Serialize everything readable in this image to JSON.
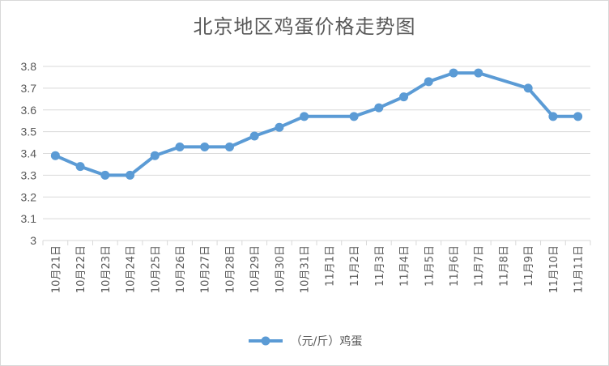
{
  "chart_data": {
    "type": "line",
    "title": "北京地区鸡蛋价格走势图",
    "categories": [
      "10月21日",
      "10月22日",
      "10月23日",
      "10月24日",
      "10月25日",
      "10月26日",
      "10月27日",
      "10月28日",
      "10月29日",
      "10月30日",
      "10月31日",
      "11月1日",
      "11月2日",
      "11月3日",
      "11月4日",
      "11月5日",
      "11月6日",
      "11月7日",
      "11月8日",
      "11月9日",
      "11月10日",
      "11月11日"
    ],
    "series": [
      {
        "name": "（元/斤）鸡蛋",
        "values": [
          3.39,
          3.34,
          3.3,
          3.3,
          3.39,
          3.43,
          3.43,
          3.43,
          3.48,
          3.52,
          3.57,
          null,
          3.57,
          3.61,
          3.66,
          3.73,
          3.77,
          3.77,
          null,
          3.7,
          3.57,
          3.57
        ]
      }
    ],
    "ylim": [
      3,
      3.8
    ],
    "yticks": [
      "3",
      "3.1",
      "3.2",
      "3.3",
      "3.4",
      "3.5",
      "3.6",
      "3.7",
      "3.8"
    ],
    "grid": true,
    "legend": "bottom",
    "colors": {
      "line": "#5b9bd5",
      "grid": "#d9d9d9",
      "text": "#595959"
    }
  }
}
